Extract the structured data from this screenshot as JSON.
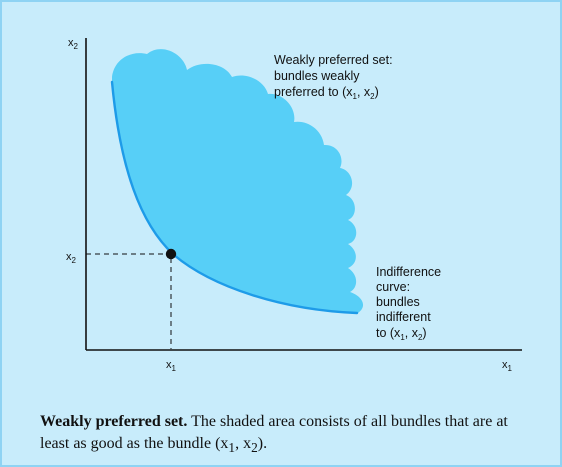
{
  "colors": {
    "panel_background": "#c8ecfb",
    "panel_border": "#8fd3f3",
    "shaded_region": "#57cff7",
    "indifference_curve": "#1e9be8",
    "axes": "#111111"
  },
  "axes": {
    "x_label": "x",
    "x_label_sub": "1",
    "y_label": "x",
    "y_label_sub": "2"
  },
  "bundle": {
    "x_tick_label": "x",
    "x_tick_sub": "1",
    "y_tick_label": "x",
    "y_tick_sub": "2"
  },
  "annotations": {
    "preferred_set": {
      "lines": [
        "Weakly preferred set:",
        "bundles weakly",
        "preferred to (x"
      ],
      "sub1": "1",
      "mid": ", x",
      "sub2": "2",
      "end": ")"
    },
    "indifference_curve": {
      "lines": [
        "Indifference",
        "curve:",
        "bundles",
        "indifferent",
        "to (x"
      ],
      "sub1": "1",
      "mid": ", x",
      "sub2": "2",
      "end": ")"
    }
  },
  "caption": {
    "title": "Weakly preferred set.",
    "text": "The shaded area consists of all bundles that are at least as good as the bundle (x",
    "sub1": "1",
    "mid": ", x",
    "sub2": "2",
    "end": ")."
  }
}
